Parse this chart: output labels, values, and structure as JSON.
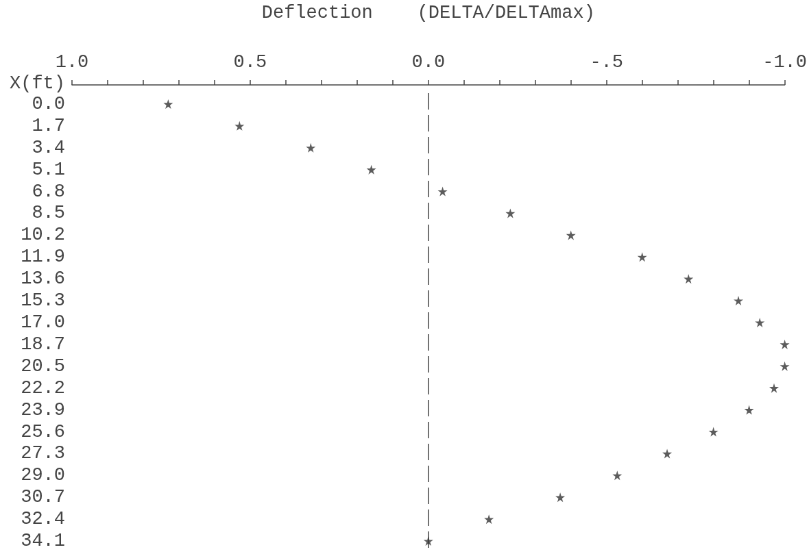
{
  "chart_data": {
    "type": "scatter",
    "orientation": "horizontal",
    "xlabel": "Deflection    (DELTA/DELTAmax)",
    "ylabel": "X(ft)",
    "categories": [
      "0.0",
      "1.7",
      "3.4",
      "5.1",
      "6.8",
      "8.5",
      "10.2",
      "11.9",
      "13.6",
      "15.3",
      "17.0",
      "18.7",
      "20.5",
      "22.2",
      "23.9",
      "25.6",
      "27.3",
      "29.0",
      "30.7",
      "32.4",
      "34.1"
    ],
    "values": [
      0.73,
      0.53,
      0.33,
      0.16,
      -0.04,
      -0.23,
      -0.4,
      -0.6,
      -0.73,
      -0.87,
      -0.93,
      -1.0,
      -1.0,
      -0.97,
      -0.9,
      -0.8,
      -0.67,
      -0.53,
      -0.37,
      -0.17,
      0.0
    ],
    "color": "#333333",
    "marker": "star",
    "xlim": [
      1.0,
      -1.0
    ],
    "xticks": [
      {
        "value": 1.0,
        "label": "1.0"
      },
      {
        "value": 0.9,
        "label": null
      },
      {
        "value": 0.8,
        "label": null
      },
      {
        "value": 0.7,
        "label": null
      },
      {
        "value": 0.6,
        "label": null
      },
      {
        "value": 0.5,
        "label": "0.5"
      },
      {
        "value": 0.4,
        "label": null
      },
      {
        "value": 0.3,
        "label": null
      },
      {
        "value": 0.2,
        "label": null
      },
      {
        "value": 0.1,
        "label": null
      },
      {
        "value": 0.0,
        "label": "0.0"
      },
      {
        "value": -0.1,
        "label": null
      },
      {
        "value": -0.2,
        "label": null
      },
      {
        "value": -0.3,
        "label": null
      },
      {
        "value": -0.4,
        "label": null
      },
      {
        "value": -0.5,
        "label": "-.5"
      },
      {
        "value": -0.6,
        "label": null
      },
      {
        "value": -0.7,
        "label": null
      },
      {
        "value": -0.8,
        "label": null
      },
      {
        "value": -0.9,
        "label": null
      },
      {
        "value": -1.0,
        "label": "-1.0"
      }
    ],
    "ref_lines": [
      {
        "axis": "x",
        "value": 0,
        "color": "#444444",
        "line_style": "dashed"
      }
    ],
    "grid": false
  }
}
